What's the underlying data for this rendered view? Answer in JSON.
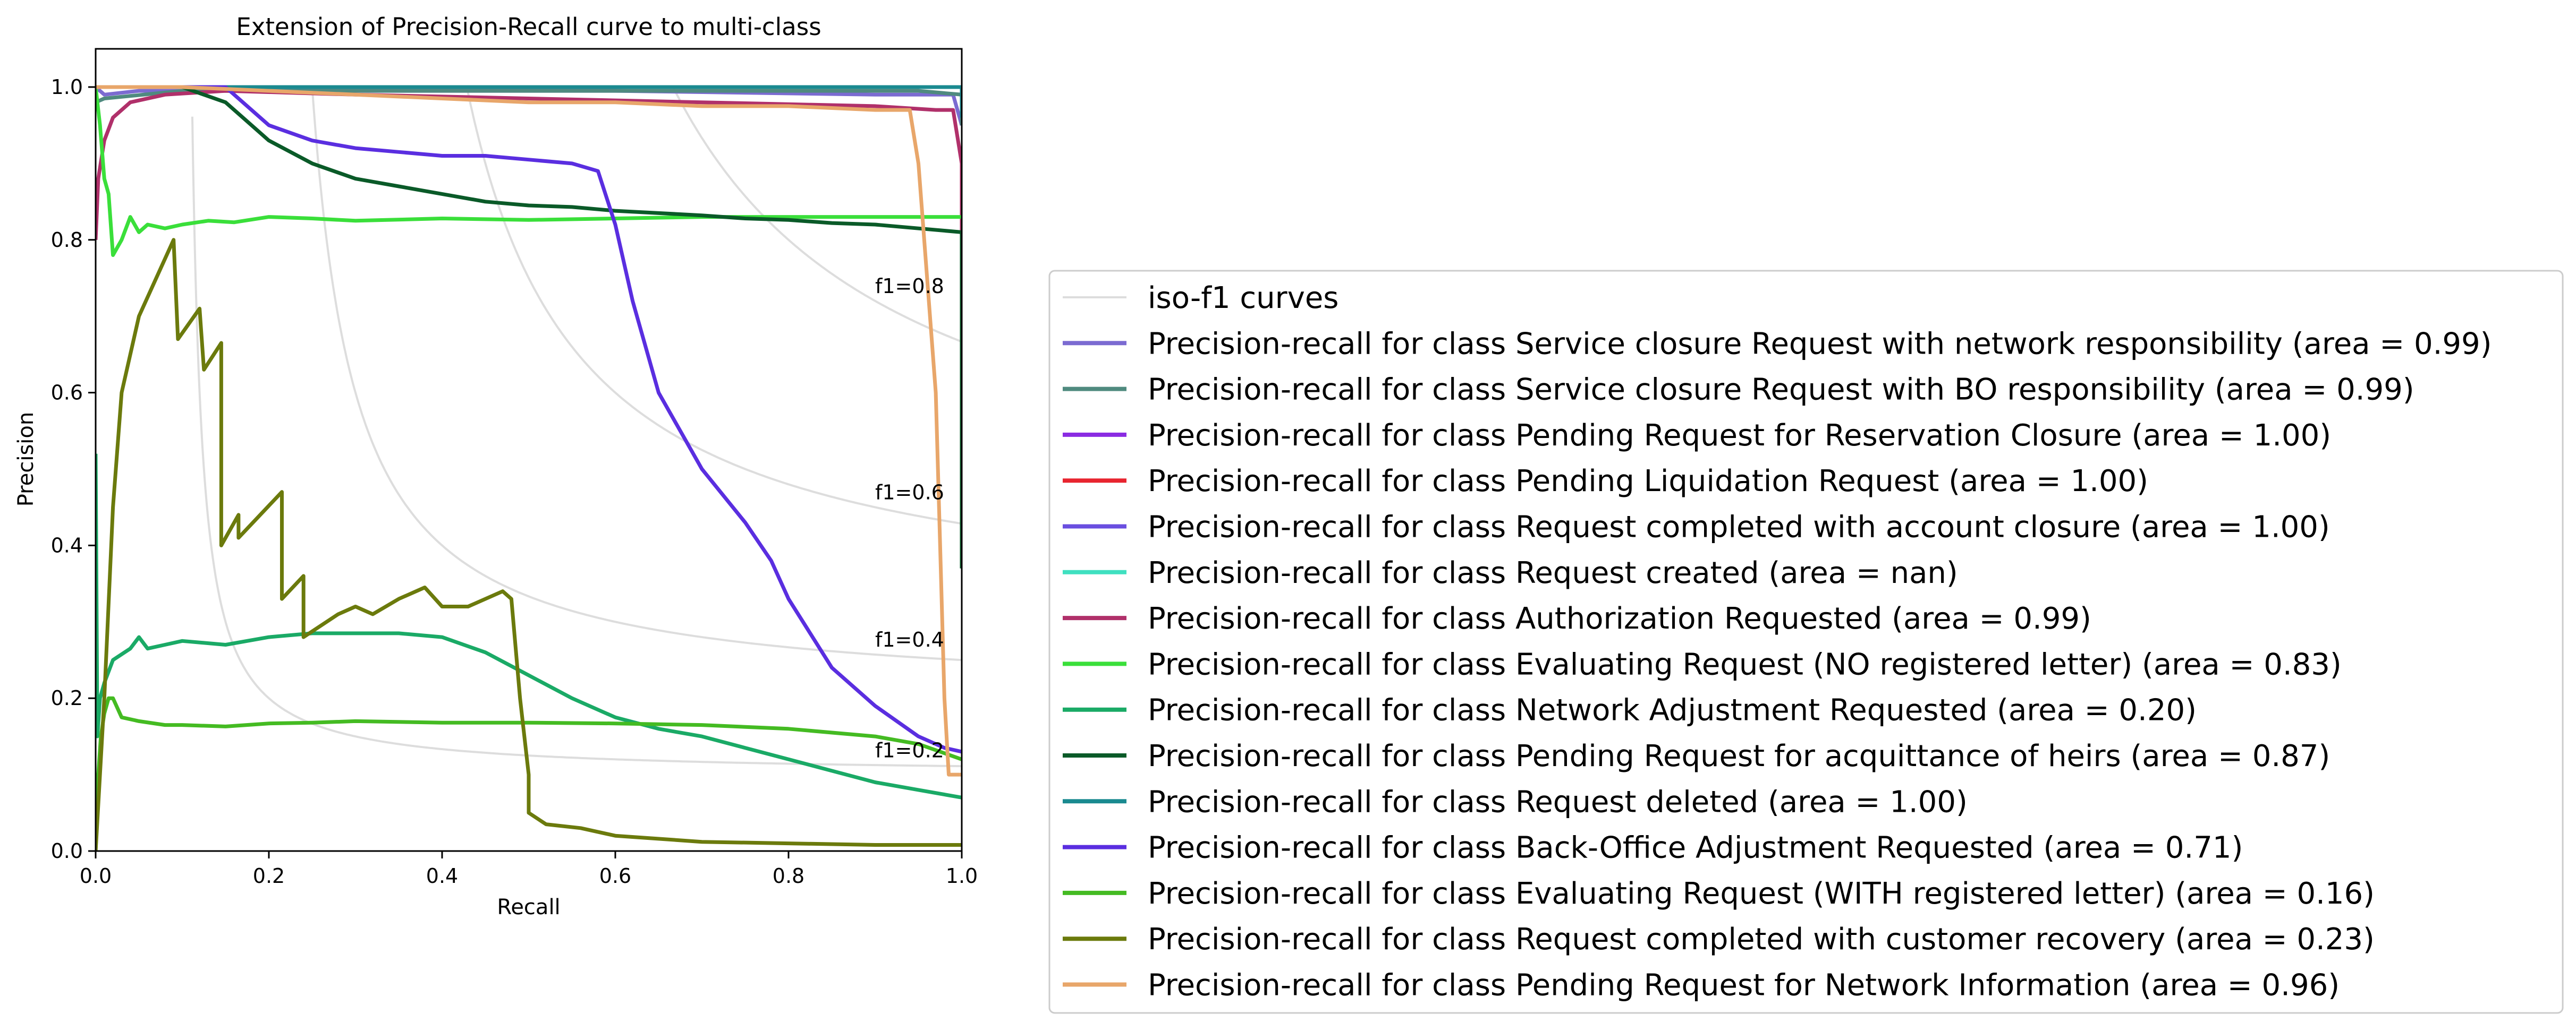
{
  "chart_data": {
    "type": "line",
    "title": "Extension of Precision-Recall curve to multi-class",
    "xlabel": "Recall",
    "ylabel": "Precision",
    "xlim": [
      0.0,
      1.0
    ],
    "ylim": [
      0.0,
      1.05
    ],
    "xticks": [
      "0.0",
      "0.2",
      "0.4",
      "0.6",
      "0.8",
      "1.0"
    ],
    "yticks": [
      "0.0",
      "0.2",
      "0.4",
      "0.6",
      "0.8",
      "1.0"
    ],
    "grid": false,
    "legend_position": "right",
    "iso_f1": {
      "legend_label": "iso-f1 curves",
      "color": "#dddddd",
      "curves": [
        {
          "f1": 0.2,
          "label": "f1=0.2"
        },
        {
          "f1": 0.4,
          "label": "f1=0.4"
        },
        {
          "f1": 0.6,
          "label": "f1=0.6"
        },
        {
          "f1": 0.8,
          "label": "f1=0.8"
        }
      ]
    },
    "series": [
      {
        "name": "Precision-recall for class Service closure Request with network responsibility (area = 0.99)",
        "color": "#7b6bd1",
        "points": [
          [
            0,
            1.0
          ],
          [
            0.01,
            0.99
          ],
          [
            0.05,
            0.995
          ],
          [
            0.3,
            0.995
          ],
          [
            0.6,
            0.995
          ],
          [
            0.9,
            0.99
          ],
          [
            0.99,
            0.99
          ],
          [
            1.0,
            0.95
          ]
        ]
      },
      {
        "name": "Precision-recall for class Service closure Request with BO responsibility (area = 0.99)",
        "color": "#4f8a7f",
        "points": [
          [
            0,
            0.98
          ],
          [
            0.01,
            0.985
          ],
          [
            0.1,
            0.995
          ],
          [
            0.5,
            0.995
          ],
          [
            0.95,
            0.995
          ],
          [
            1.0,
            0.99
          ],
          [
            1.0,
            0.95
          ]
        ]
      },
      {
        "name": "Precision-recall for class Pending Request for Reservation Closure (area = 1.00)",
        "color": "#8a2be2",
        "points": [
          [
            0,
            1.0
          ],
          [
            0.2,
            1.0
          ],
          [
            0.6,
            1.0
          ],
          [
            1.0,
            1.0
          ],
          [
            1.0,
            0.97
          ]
        ]
      },
      {
        "name": "Precision-recall for class Pending Liquidation Request (area = 1.00)",
        "color": "#e8242f",
        "points": [
          [
            0,
            1.0
          ],
          [
            0.3,
            1.0
          ],
          [
            0.7,
            1.0
          ],
          [
            1.0,
            1.0
          ],
          [
            1.0,
            0.98
          ]
        ]
      },
      {
        "name": "Precision-recall for class Request completed with account closure (area = 1.00)",
        "color": "#6a4fe0",
        "points": [
          [
            0,
            1.0
          ],
          [
            0.5,
            1.0
          ],
          [
            1.0,
            1.0
          ],
          [
            1.0,
            0.98
          ]
        ]
      },
      {
        "name": "Precision-recall for class Request created (area = nan)",
        "color": "#40e0c0",
        "points": [
          [
            0,
            1.0
          ],
          [
            1.0,
            1.0
          ]
        ]
      },
      {
        "name": "Precision-recall for class Authorization Requested (area = 0.99)",
        "color": "#b0306a",
        "points": [
          [
            0,
            0.8
          ],
          [
            0.003,
            0.88
          ],
          [
            0.01,
            0.93
          ],
          [
            0.02,
            0.96
          ],
          [
            0.04,
            0.98
          ],
          [
            0.08,
            0.99
          ],
          [
            0.15,
            0.995
          ],
          [
            0.3,
            0.99
          ],
          [
            0.5,
            0.985
          ],
          [
            0.7,
            0.98
          ],
          [
            0.9,
            0.975
          ],
          [
            0.97,
            0.97
          ],
          [
            0.99,
            0.97
          ],
          [
            1.0,
            0.9
          ],
          [
            1.0,
            0.8
          ]
        ]
      },
      {
        "name": "Precision-recall for class Evaluating Request (NO registered letter) (area = 0.83)",
        "color": "#3adf3a",
        "points": [
          [
            0,
            1.0
          ],
          [
            0.005,
            0.95
          ],
          [
            0.01,
            0.88
          ],
          [
            0.015,
            0.86
          ],
          [
            0.02,
            0.78
          ],
          [
            0.03,
            0.8
          ],
          [
            0.04,
            0.83
          ],
          [
            0.05,
            0.81
          ],
          [
            0.06,
            0.82
          ],
          [
            0.08,
            0.815
          ],
          [
            0.1,
            0.82
          ],
          [
            0.13,
            0.825
          ],
          [
            0.16,
            0.823
          ],
          [
            0.2,
            0.83
          ],
          [
            0.25,
            0.828
          ],
          [
            0.3,
            0.825
          ],
          [
            0.4,
            0.828
          ],
          [
            0.5,
            0.826
          ],
          [
            0.6,
            0.828
          ],
          [
            0.7,
            0.83
          ],
          [
            0.8,
            0.83
          ],
          [
            0.9,
            0.83
          ],
          [
            1.0,
            0.83
          ]
        ]
      },
      {
        "name": "Precision-recall for class Network Adjustment Requested (area = 0.20)",
        "color": "#1aaa66",
        "points": [
          [
            0,
            0.52
          ],
          [
            0.002,
            0.15
          ],
          [
            0.005,
            0.2
          ],
          [
            0.01,
            0.22
          ],
          [
            0.02,
            0.25
          ],
          [
            0.04,
            0.265
          ],
          [
            0.05,
            0.28
          ],
          [
            0.06,
            0.265
          ],
          [
            0.08,
            0.27
          ],
          [
            0.1,
            0.275
          ],
          [
            0.15,
            0.27
          ],
          [
            0.2,
            0.28
          ],
          [
            0.25,
            0.285
          ],
          [
            0.3,
            0.285
          ],
          [
            0.35,
            0.285
          ],
          [
            0.4,
            0.28
          ],
          [
            0.45,
            0.26
          ],
          [
            0.5,
            0.23
          ],
          [
            0.55,
            0.2
          ],
          [
            0.6,
            0.175
          ],
          [
            0.65,
            0.16
          ],
          [
            0.7,
            0.15
          ],
          [
            0.75,
            0.135
          ],
          [
            0.8,
            0.12
          ],
          [
            0.85,
            0.105
          ],
          [
            0.9,
            0.09
          ],
          [
            0.95,
            0.08
          ],
          [
            1.0,
            0.07
          ]
        ]
      },
      {
        "name": "Precision-recall for class Pending Request for acquittance of heirs (area = 0.87)",
        "color": "#0a5a28",
        "points": [
          [
            0,
            1.0
          ],
          [
            0.01,
            1.0
          ],
          [
            0.05,
            1.0
          ],
          [
            0.1,
            1.0
          ],
          [
            0.15,
            0.98
          ],
          [
            0.17,
            0.96
          ],
          [
            0.2,
            0.93
          ],
          [
            0.25,
            0.9
          ],
          [
            0.3,
            0.88
          ],
          [
            0.35,
            0.87
          ],
          [
            0.4,
            0.86
          ],
          [
            0.45,
            0.85
          ],
          [
            0.5,
            0.845
          ],
          [
            0.55,
            0.843
          ],
          [
            0.6,
            0.838
          ],
          [
            0.65,
            0.835
          ],
          [
            0.7,
            0.832
          ],
          [
            0.75,
            0.828
          ],
          [
            0.8,
            0.826
          ],
          [
            0.85,
            0.822
          ],
          [
            0.9,
            0.82
          ],
          [
            0.95,
            0.815
          ],
          [
            1.0,
            0.81
          ],
          [
            1.0,
            0.37
          ]
        ]
      },
      {
        "name": "Precision-recall for class Request deleted (area = 1.00)",
        "color": "#1a8a90",
        "points": [
          [
            0,
            1.0
          ],
          [
            0.5,
            1.0
          ],
          [
            1.0,
            1.0
          ],
          [
            1.0,
            0.96
          ]
        ]
      },
      {
        "name": "Precision-recall for class Back-Office Adjustment Requested (area = 0.71)",
        "color": "#5a2ee0",
        "points": [
          [
            0,
            1.0
          ],
          [
            0.1,
            1.0
          ],
          [
            0.15,
            1.0
          ],
          [
            0.18,
            0.97
          ],
          [
            0.2,
            0.95
          ],
          [
            0.25,
            0.93
          ],
          [
            0.3,
            0.92
          ],
          [
            0.35,
            0.915
          ],
          [
            0.4,
            0.91
          ],
          [
            0.45,
            0.91
          ],
          [
            0.5,
            0.905
          ],
          [
            0.55,
            0.9
          ],
          [
            0.58,
            0.89
          ],
          [
            0.6,
            0.82
          ],
          [
            0.62,
            0.72
          ],
          [
            0.65,
            0.6
          ],
          [
            0.7,
            0.5
          ],
          [
            0.75,
            0.43
          ],
          [
            0.78,
            0.38
          ],
          [
            0.8,
            0.33
          ],
          [
            0.85,
            0.24
          ],
          [
            0.9,
            0.19
          ],
          [
            0.95,
            0.15
          ],
          [
            0.98,
            0.135
          ],
          [
            1.0,
            0.13
          ]
        ]
      },
      {
        "name": "Precision-recall for class Evaluating Request (WITH registered letter) (area = 0.16)",
        "color": "#44bb22",
        "points": [
          [
            0,
            0.0
          ],
          [
            0.003,
            0.1
          ],
          [
            0.006,
            0.15
          ],
          [
            0.01,
            0.18
          ],
          [
            0.015,
            0.2
          ],
          [
            0.02,
            0.2
          ],
          [
            0.03,
            0.175
          ],
          [
            0.05,
            0.17
          ],
          [
            0.08,
            0.165
          ],
          [
            0.1,
            0.165
          ],
          [
            0.15,
            0.163
          ],
          [
            0.2,
            0.167
          ],
          [
            0.25,
            0.168
          ],
          [
            0.3,
            0.17
          ],
          [
            0.4,
            0.168
          ],
          [
            0.5,
            0.168
          ],
          [
            0.6,
            0.167
          ],
          [
            0.7,
            0.165
          ],
          [
            0.8,
            0.16
          ],
          [
            0.9,
            0.15
          ],
          [
            0.95,
            0.14
          ],
          [
            1.0,
            0.12
          ]
        ]
      },
      {
        "name": "Precision-recall for class Request completed with customer recovery (area = 0.23)",
        "color": "#6b7a0c",
        "points": [
          [
            0,
            0.0
          ],
          [
            0.01,
            0.2
          ],
          [
            0.02,
            0.45
          ],
          [
            0.03,
            0.6
          ],
          [
            0.05,
            0.7
          ],
          [
            0.07,
            0.75
          ],
          [
            0.09,
            0.8
          ],
          [
            0.095,
            0.67
          ],
          [
            0.12,
            0.71
          ],
          [
            0.125,
            0.63
          ],
          [
            0.145,
            0.665
          ],
          [
            0.145,
            0.4
          ],
          [
            0.165,
            0.44
          ],
          [
            0.165,
            0.41
          ],
          [
            0.215,
            0.47
          ],
          [
            0.215,
            0.33
          ],
          [
            0.24,
            0.36
          ],
          [
            0.24,
            0.28
          ],
          [
            0.28,
            0.31
          ],
          [
            0.3,
            0.32
          ],
          [
            0.32,
            0.31
          ],
          [
            0.35,
            0.33
          ],
          [
            0.38,
            0.345
          ],
          [
            0.4,
            0.32
          ],
          [
            0.43,
            0.32
          ],
          [
            0.47,
            0.34
          ],
          [
            0.48,
            0.33
          ],
          [
            0.49,
            0.2
          ],
          [
            0.5,
            0.1
          ],
          [
            0.5,
            0.05
          ],
          [
            0.52,
            0.035
          ],
          [
            0.56,
            0.03
          ],
          [
            0.6,
            0.02
          ],
          [
            0.7,
            0.012
          ],
          [
            0.8,
            0.01
          ],
          [
            0.9,
            0.008
          ],
          [
            1.0,
            0.008
          ]
        ]
      },
      {
        "name": "Precision-recall for class Pending Request for Network Information (area = 0.96)",
        "color": "#e8a66a",
        "points": [
          [
            0,
            1.0
          ],
          [
            0.1,
            1.0
          ],
          [
            0.2,
            0.995
          ],
          [
            0.3,
            0.99
          ],
          [
            0.4,
            0.985
          ],
          [
            0.5,
            0.98
          ],
          [
            0.6,
            0.98
          ],
          [
            0.7,
            0.975
          ],
          [
            0.8,
            0.975
          ],
          [
            0.9,
            0.97
          ],
          [
            0.94,
            0.97
          ],
          [
            0.95,
            0.9
          ],
          [
            0.97,
            0.6
          ],
          [
            0.975,
            0.4
          ],
          [
            0.98,
            0.2
          ],
          [
            0.985,
            0.1
          ],
          [
            1.0,
            0.1
          ]
        ]
      }
    ]
  }
}
